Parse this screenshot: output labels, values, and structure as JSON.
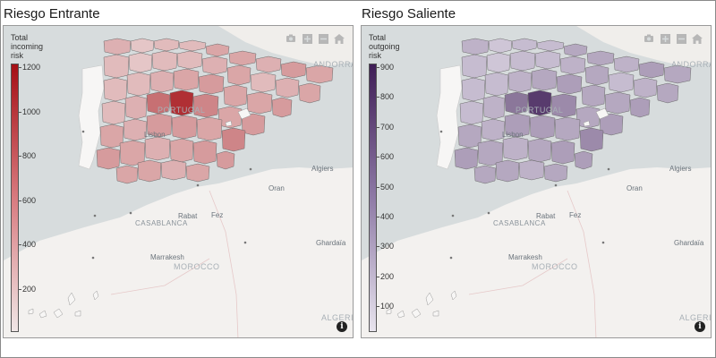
{
  "colors": {
    "incoming_high": "#a50f15",
    "incoming_low": "#f0e6e6",
    "outgoing_high": "#3f1d56",
    "outgoing_low": "#e8e4ee",
    "sea": "#d7dcdd",
    "land": "#f3f1ef"
  },
  "icons": [
    "camera-icon",
    "zoom-in-icon",
    "zoom-out-icon",
    "home-icon",
    "info-icon"
  ],
  "panels": [
    {
      "title": "Riesgo Entrante",
      "legend_title": [
        "Total",
        "incoming",
        "risk"
      ],
      "ticks": [
        "1200",
        "1000",
        "800",
        "600",
        "400",
        "200"
      ],
      "labels": {
        "portugal": "PORTUGAL",
        "andorra": "ANDORRA",
        "lisbon": "Lisbon",
        "algiers": "Algiers",
        "oran": "Oran",
        "rabat": "Rabat",
        "fez": "Fez",
        "casablanca": "CASABLANCA",
        "ghardaia": "Ghardaïa",
        "marrakesh": "Marrakesh",
        "morocco": "MOROCCO",
        "algeria": "ALGERIA"
      }
    },
    {
      "title": "Riesgo Saliente",
      "legend_title": [
        "Total",
        "outgoing",
        "risk"
      ],
      "ticks": [
        "900",
        "800",
        "700",
        "600",
        "500",
        "400",
        "300",
        "200",
        "100"
      ],
      "labels": {
        "portugal": "PORTUGAL",
        "andorra": "ANDORRA",
        "lisbon": "Lisbon",
        "algiers": "Algiers",
        "oran": "Oran",
        "rabat": "Rabat",
        "fez": "Fez",
        "casablanca": "CASABLANCA",
        "ghardaia": "Ghardaïa",
        "marrakesh": "Marrakesh",
        "morocco": "MOROCCO",
        "algeria": "ALGERIA"
      }
    }
  ]
}
